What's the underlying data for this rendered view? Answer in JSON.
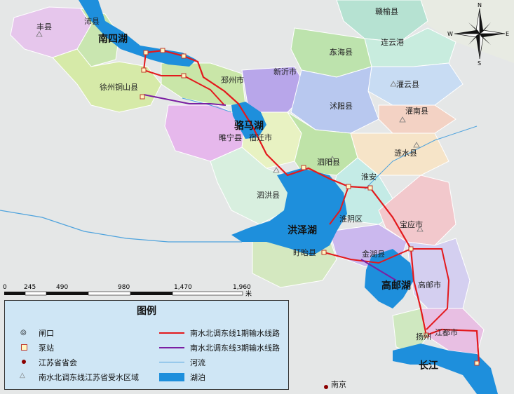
{
  "regions": {
    "fengxian": "丰县",
    "peixian": "沛县",
    "xuzhou_tongshan": "徐州铜山县",
    "pizhou": "邳州市",
    "xinyi": "新沂市",
    "ganyu": "赣榆县",
    "donghai": "东海县",
    "lianyungang": "连云港",
    "guanyun": "灌云县",
    "shuyang": "沭阳县",
    "guannan": "灌南县",
    "suining": "睢宁县",
    "suqian": "宿迁市",
    "siyang": "泗阳县",
    "lianshui": "涟水县",
    "sihong": "泗洪县",
    "huaian": "淮安",
    "huaiyin": "淮阴区",
    "xuyi": "盱眙县",
    "jinhu": "金湖县",
    "baoying": "宝应市",
    "gaoyou": "高邮市",
    "jiangdu": "江都市",
    "yangzhou": "扬州",
    "nanjing": "南京"
  },
  "lakes": {
    "nansihu": "南四湖",
    "luomahu": "骆马湖",
    "hongzehu": "洪泽湖",
    "gaoyouhu": "高邮湖"
  },
  "river_label": "长江",
  "compass": {
    "n": "N",
    "s": "S",
    "e": "E",
    "w": "W"
  },
  "scalebar": {
    "ticks": [
      "0",
      "245",
      "490",
      "980",
      "1,470",
      "1,960"
    ],
    "unit": "米"
  },
  "legend": {
    "title": "图例",
    "items": [
      {
        "symbol": "sluice-icon",
        "label": "闸口"
      },
      {
        "symbol": "pump-station-icon",
        "label": "泵站"
      },
      {
        "symbol": "capital-icon",
        "label": "江苏省省会"
      },
      {
        "symbol": "triangle-icon",
        "label": "南水北调东线江苏省受水区域"
      },
      {
        "symbol": "red-line",
        "label": "南水北调东线1期输水线路",
        "color": "#e3191c"
      },
      {
        "symbol": "purple-line",
        "label": "南水北调东线3期输水线路",
        "color": "#7b1fa2"
      },
      {
        "symbol": "river-line",
        "label": "河流",
        "color": "#4fa3dd"
      },
      {
        "symbol": "lake-fill",
        "label": "湖泊",
        "color": "#1e8fdc"
      }
    ]
  },
  "colors": {
    "phase1": "#e3191c",
    "phase3": "#7b1fa2",
    "lake": "#1e8fdc",
    "river": "#4fa3dd",
    "background": "#e6e8e8"
  }
}
